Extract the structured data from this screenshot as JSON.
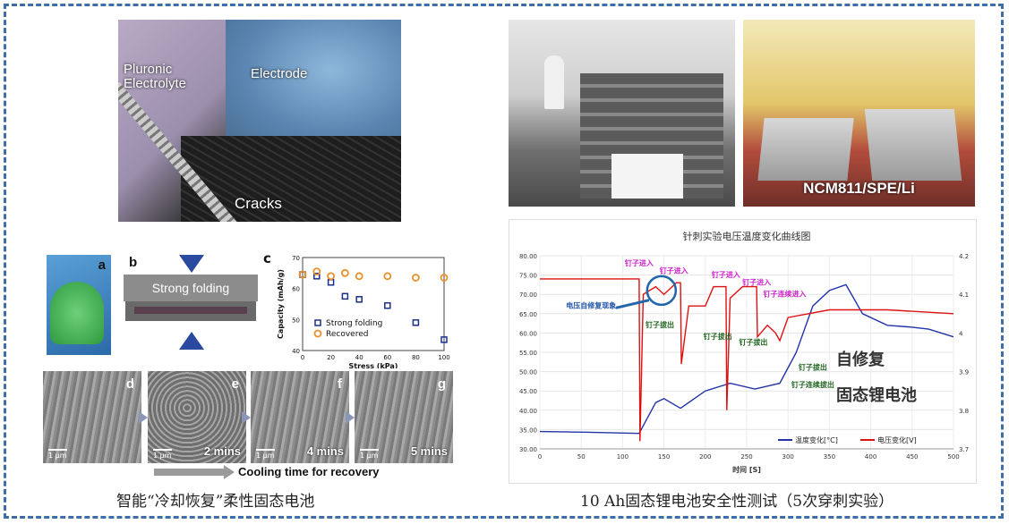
{
  "left": {
    "zipper_labels": {
      "electrolyte": "Pluronic\nElectrolyte",
      "electrode": "Electrode",
      "cracks": "Cracks"
    },
    "panels": {
      "a": "a",
      "b": "b",
      "c": "c",
      "d": "d",
      "e": "e",
      "f": "f",
      "g": "g"
    },
    "folding_label": "Strong folding",
    "sem_times": [
      "2 mins",
      "4 mins",
      "5 mins"
    ],
    "scale_label": "1 μm",
    "cooling_label": "Cooling time for recovery",
    "caption": "智能“冷却恢复”柔性固态电池"
  },
  "right": {
    "photo_label": "NCM811/SPE/Li",
    "caption": "10 Ah固态锂电池安全性测试（5次穿刺实验）",
    "overlay_text": [
      "自修复",
      "固态锂电池"
    ]
  },
  "chart_data": [
    {
      "type": "scatter",
      "ylabel": "Capacity (mAh/g)",
      "xlabel": "Stress (kPa)",
      "xlim": [
        0,
        100
      ],
      "ylim": [
        40,
        70
      ],
      "xticks": [
        0,
        10,
        20,
        30,
        40,
        50,
        60,
        70,
        80,
        90,
        100
      ],
      "yticks": [
        40,
        50,
        60,
        70
      ],
      "legend_position": "bottom-left",
      "series": [
        {
          "name": "Strong folding",
          "color": "#1a2f8a",
          "marker": "square",
          "x": [
            0,
            10,
            20,
            30,
            40,
            60,
            80,
            100
          ],
          "y": [
            64.5,
            64,
            62,
            57.5,
            56.5,
            54.5,
            49,
            43.5
          ]
        },
        {
          "name": "Recovered",
          "color": "#e8912a",
          "marker": "circle",
          "x": [
            0,
            10,
            20,
            30,
            40,
            60,
            80,
            100
          ],
          "y": [
            64.5,
            65.5,
            64,
            65,
            64,
            64,
            63.5,
            63.5
          ]
        }
      ]
    },
    {
      "type": "line",
      "title": "针刺实验电压温度变化曲线图",
      "xlabel": "时间 [S]",
      "xlim": [
        0,
        500
      ],
      "ylim": [
        30,
        80
      ],
      "y2lim": [
        3.7,
        4.2
      ],
      "xticks": [
        0,
        50,
        100,
        150,
        200,
        250,
        300,
        350,
        400,
        450,
        500
      ],
      "yticks": [
        30,
        35,
        40,
        45,
        50,
        55,
        60,
        65,
        70,
        75,
        80
      ],
      "yticks_labels": [
        "30.00",
        "35.00",
        "40.00",
        "45.00",
        "50.00",
        "55.00",
        "60.00",
        "65.00",
        "70.00",
        "75.00",
        "80.00"
      ],
      "y2ticks": [
        3.7,
        3.8,
        3.9,
        4,
        4.1,
        4.2
      ],
      "y2ticks_labels": [
        "3.7",
        "3.8",
        "3.9",
        "4",
        "4.1",
        "4.2"
      ],
      "legend_position": "bottom-right",
      "series": [
        {
          "name": "温度变化[°C]",
          "axis": "left",
          "color": "#2233aa",
          "x": [
            0,
            60,
            120,
            125,
            140,
            150,
            170,
            200,
            230,
            260,
            290,
            310,
            330,
            350,
            370,
            390,
            420,
            450,
            470,
            500
          ],
          "y": [
            34.5,
            34.3,
            34,
            36,
            42,
            43,
            40.5,
            45,
            47,
            45.5,
            47,
            55,
            67,
            71,
            72.5,
            65,
            62,
            61.5,
            61,
            59
          ]
        },
        {
          "name": "电压变化[V]",
          "axis": "right",
          "color": "#dd1111",
          "x": [
            0,
            118,
            120,
            121,
            125,
            140,
            150,
            165,
            170,
            171,
            180,
            200,
            210,
            225,
            226,
            230,
            245,
            255,
            262,
            263,
            275,
            285,
            290,
            300,
            350,
            420,
            500
          ],
          "y": [
            4.14,
            4.14,
            4.14,
            3.72,
            4.1,
            4.12,
            4.1,
            4.13,
            4.13,
            3.92,
            4.07,
            4.07,
            4.12,
            4.12,
            3.8,
            4.09,
            4.12,
            4.12,
            4.12,
            3.99,
            4.02,
            4.0,
            3.98,
            4.04,
            4.06,
            4.06,
            4.05
          ]
        }
      ],
      "annotations": [
        {
          "text": "钉子进入",
          "color": "#cc22cc",
          "x": 120,
          "y": 77.5
        },
        {
          "text": "钉子进入",
          "color": "#cc22cc",
          "x": 162,
          "y": 75.5
        },
        {
          "text": "钉子进入",
          "color": "#cc22cc",
          "x": 225,
          "y": 74.5
        },
        {
          "text": "钉子进入",
          "color": "#cc22cc",
          "x": 262,
          "y": 72.5
        },
        {
          "text": "钉子连续进入",
          "color": "#cc22cc",
          "x": 296,
          "y": 69.5
        },
        {
          "text": "钉子拔出",
          "color": "#226622",
          "x": 145,
          "y": 61.5
        },
        {
          "text": "钉子拔出",
          "color": "#226622",
          "x": 215,
          "y": 58.5
        },
        {
          "text": "钉子拔出",
          "color": "#226622",
          "x": 258,
          "y": 57
        },
        {
          "text": "钉子拔出",
          "color": "#226622",
          "x": 330,
          "y": 50.5
        },
        {
          "text": "钉子连续拔出",
          "color": "#226622",
          "x": 330,
          "y": 46
        },
        {
          "text": "电压自修复现象",
          "color": "#2255aa",
          "x": 62,
          "y": 66.5
        }
      ]
    }
  ]
}
